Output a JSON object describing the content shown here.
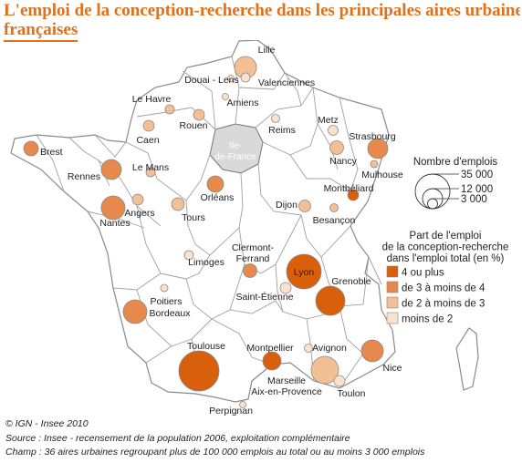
{
  "title_line1": "L'emploi de la conception-recherche dans les principales aires urbaines",
  "title_line2": "françaises",
  "region_label": "Ile-de-France",
  "colors": {
    "title": "#e0701c",
    "cat1": "#d85f0c",
    "cat2": "#e7884d",
    "cat3": "#f3bf94",
    "cat4": "#fbe2cc",
    "land": "#ffffff",
    "idf": "#d9d9d9",
    "border": "#8a8a8a"
  },
  "legend": {
    "size_title": "Nombre d'emplois",
    "size_values": [
      "35 000",
      "12 000",
      "3 000"
    ],
    "color_title": [
      "Part de l'emploi",
      "de la conception-recherche",
      "dans l'emploi total (en %)"
    ],
    "categories": [
      "4 ou plus",
      "de 3 à moins de 4",
      "de 2 à moins de 3",
      "moins de 2"
    ]
  },
  "cities": [
    {
      "name": "Lille",
      "cat": 3
    },
    {
      "name": "Douai - Lens",
      "cat": 4
    },
    {
      "name": "Valenciennes",
      "cat": 4
    },
    {
      "name": "Amiens",
      "cat": 4
    },
    {
      "name": "Le Havre",
      "cat": 3
    },
    {
      "name": "Rouen",
      "cat": 3
    },
    {
      "name": "Caen",
      "cat": 3
    },
    {
      "name": "Brest",
      "cat": 2
    },
    {
      "name": "Reims",
      "cat": 4
    },
    {
      "name": "Metz",
      "cat": 4
    },
    {
      "name": "Strasbourg",
      "cat": 2
    },
    {
      "name": "Nancy",
      "cat": 3
    },
    {
      "name": "Mulhouse",
      "cat": 3
    },
    {
      "name": "Montbéliard",
      "cat": 1
    },
    {
      "name": "Besançon",
      "cat": 3
    },
    {
      "name": "Dijon",
      "cat": 3
    },
    {
      "name": "Rennes",
      "cat": 2
    },
    {
      "name": "Le Mans",
      "cat": 3
    },
    {
      "name": "Angers",
      "cat": 3
    },
    {
      "name": "Nantes",
      "cat": 2
    },
    {
      "name": "Tours",
      "cat": 3
    },
    {
      "name": "Orléans",
      "cat": 2
    },
    {
      "name": "Poitiers",
      "cat": 4
    },
    {
      "name": "Limoges",
      "cat": 4
    },
    {
      "name": "Clermont-Ferrand",
      "cat": 2
    },
    {
      "name": "Lyon",
      "cat": 1
    },
    {
      "name": "Saint-Étienne",
      "cat": 4
    },
    {
      "name": "Grenoble",
      "cat": 1
    },
    {
      "name": "Bordeaux",
      "cat": 2
    },
    {
      "name": "Toulouse",
      "cat": 1
    },
    {
      "name": "Montpellier",
      "cat": 1
    },
    {
      "name": "Avignon",
      "cat": 4
    },
    {
      "name": "Nice",
      "cat": 2
    },
    {
      "name": "Marseille - Aix-en-Provence",
      "cat": 3
    },
    {
      "name": "Toulon",
      "cat": 4
    },
    {
      "name": "Perpignan",
      "cat": 4
    }
  ],
  "footer": {
    "copyright": "© IGN - Insee 2010",
    "source": "Source : Insee - recensement de la population 2006, exploitation complémentaire",
    "champ": "Champ : 36 aires urbaines regroupant plus de 100 000 emplois au total ou au moins 3 000 emplois"
  }
}
